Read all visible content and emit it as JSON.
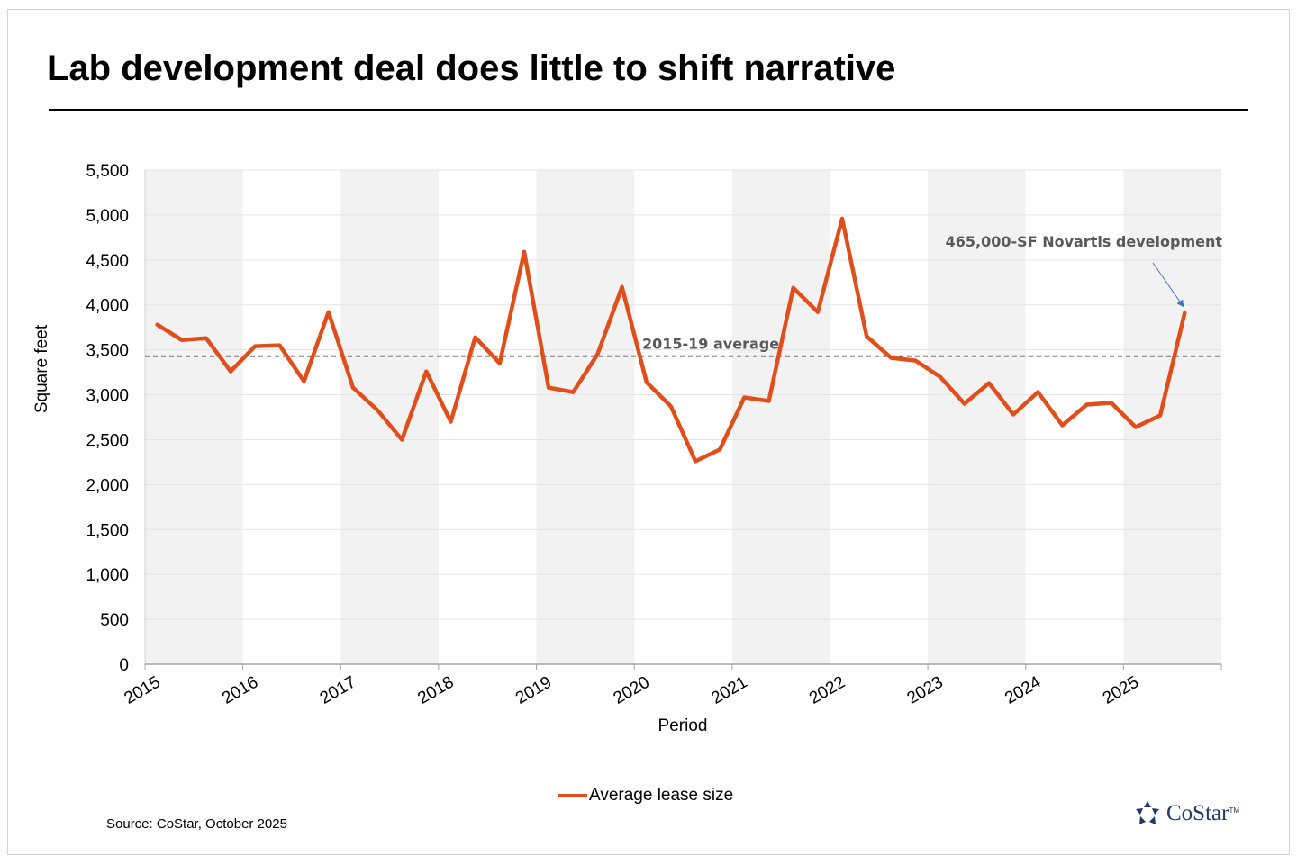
{
  "header": {
    "title": "Lab development deal does little to shift narrative"
  },
  "footer": {
    "source": "Source: CoStar, October 2025"
  },
  "brand": {
    "name": "CoStar",
    "tm": "TM",
    "color": "#1f3a68"
  },
  "colors": {
    "series": "#e04e1b",
    "band": "#f2f2f2",
    "grid": "#e3e3e3",
    "annotation_text": "#595959",
    "arrow": "#4472c4"
  },
  "chart_data": {
    "type": "line",
    "title": "Lab development deal does little to shift narrative",
    "xlabel": "Period",
    "ylabel": "Square feet",
    "ylim": [
      0,
      5500
    ],
    "yticks": [
      0,
      500,
      1000,
      1500,
      2000,
      2500,
      3000,
      3500,
      4000,
      4500,
      5000,
      5500
    ],
    "ytick_labels": [
      "0",
      "500",
      "1,000",
      "1,500",
      "2,000",
      "2,500",
      "3,000",
      "3,500",
      "4,000",
      "4,500",
      "5,000",
      "5,500"
    ],
    "x_tick_labels": [
      "2015",
      "2016",
      "2017",
      "2018",
      "2019",
      "2020",
      "2021",
      "2022",
      "2023",
      "2024",
      "2025"
    ],
    "x_axis": "quarterly, 2015 Q1 to 2025 Q3",
    "grid": true,
    "legend": "bottom-center",
    "series": [
      {
        "name": "Average lease size",
        "values": [
          3780,
          3610,
          3630,
          3260,
          3540,
          3550,
          3150,
          3920,
          3080,
          2830,
          2500,
          3260,
          2700,
          3640,
          3350,
          4590,
          3080,
          3030,
          3450,
          4200,
          3140,
          2870,
          2260,
          2390,
          2970,
          2930,
          4190,
          3920,
          4960,
          3650,
          3410,
          3380,
          3200,
          2900,
          3130,
          2780,
          3030,
          2660,
          2890,
          2910,
          2640,
          2770,
          3910
        ]
      }
    ],
    "reference_line": {
      "label": "2015-19 average",
      "value": 3430,
      "style": "dashed"
    },
    "annotation": {
      "text": "465,000-SF Novartis development",
      "points_to_index": 42
    }
  }
}
